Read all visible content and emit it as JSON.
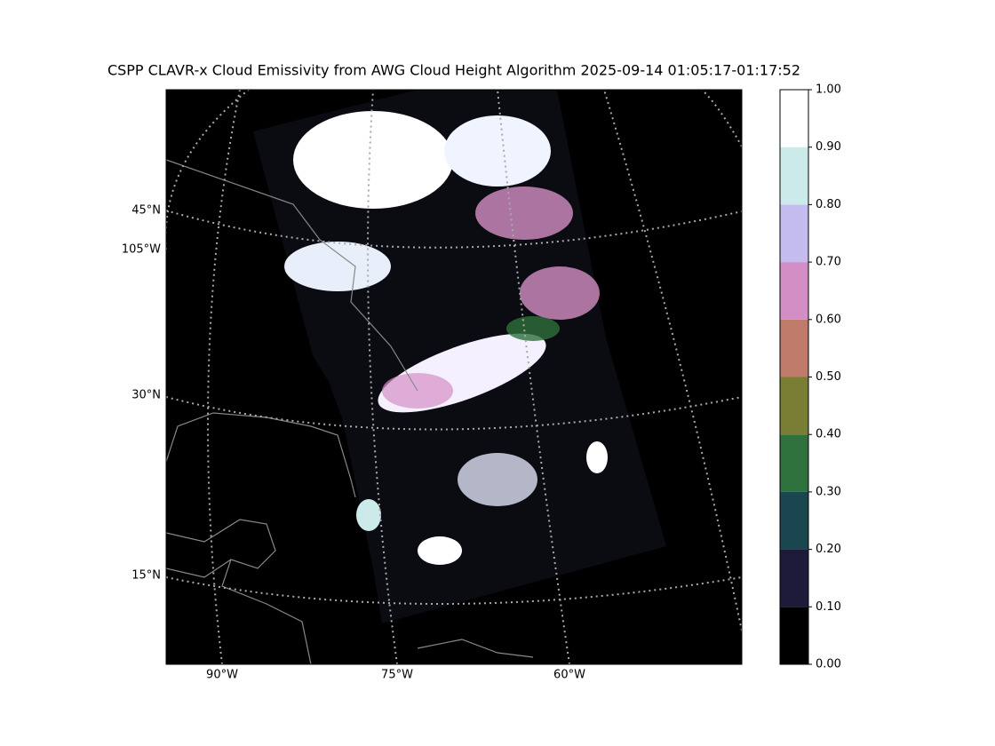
{
  "title": "CSPP CLAVR-x Cloud Emissivity from AWG Cloud Height Algorithm 2025-09-14 01:05:17-01:17:52",
  "map": {
    "lat_labels": [
      "45°N",
      "105°W",
      "30°N",
      "15°N"
    ],
    "lon_labels": [
      "90°W",
      "75°W",
      "60°W"
    ]
  },
  "colorbar": {
    "ticks": [
      {
        "value": 0,
        "label": "0.00"
      },
      {
        "value": 0.1,
        "label": "0.10"
      },
      {
        "value": 0.2,
        "label": "0.20"
      },
      {
        "value": 0.3,
        "label": "0.30"
      },
      {
        "value": 0.4,
        "label": "0.40"
      },
      {
        "value": 0.5,
        "label": "0.50"
      },
      {
        "value": 0.6,
        "label": "0.60"
      },
      {
        "value": 0.7,
        "label": "0.70"
      },
      {
        "value": 0.8,
        "label": "0.80"
      },
      {
        "value": 0.9,
        "label": "0.90"
      },
      {
        "value": 1,
        "label": "1.00"
      }
    ],
    "colors": [
      "#000000",
      "#1e1a3a",
      "#1a4650",
      "#2e713c",
      "#7a7e35",
      "#c07a6a",
      "#d48ec6",
      "#c4bcef",
      "#cdeaea",
      "#ffffff"
    ]
  }
}
